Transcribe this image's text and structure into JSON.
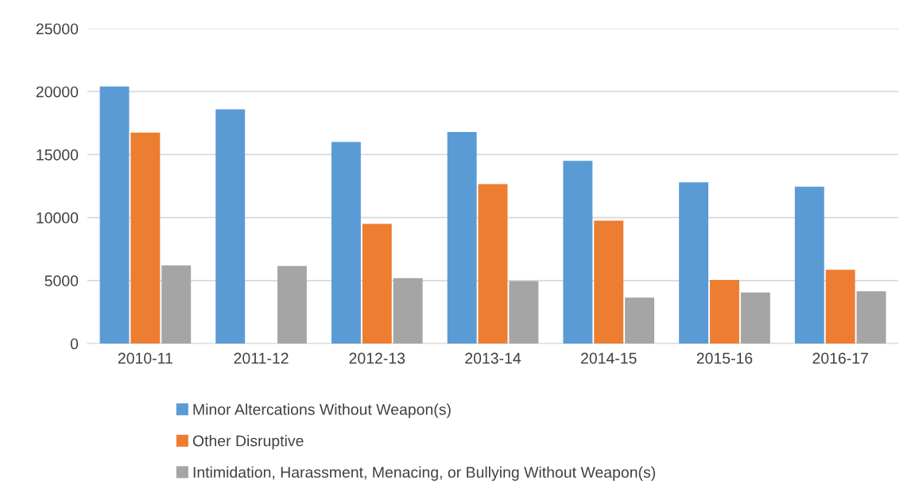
{
  "chart_data": {
    "type": "bar",
    "categories": [
      "2010-11",
      "2011-12",
      "2012-13",
      "2013-14",
      "2014-15",
      "2015-16",
      "2016-17"
    ],
    "series": [
      {
        "name": "Minor Altercations Without Weapon(s)",
        "color": "#5b9bd5",
        "values": [
          20400,
          18600,
          16000,
          16800,
          14500,
          12800,
          12450
        ]
      },
      {
        "name": "Other Disruptive",
        "color": "#ed7d31",
        "values": [
          16750,
          null,
          9500,
          12650,
          9750,
          5050,
          5850
        ]
      },
      {
        "name": "Intimidation, Harassment, Menacing, or Bullying Without Weapon(s)",
        "color": "#a5a5a5",
        "values": [
          6200,
          6150,
          5200,
          4950,
          3650,
          4050,
          4150
        ]
      }
    ],
    "ylim": [
      0,
      25000
    ],
    "yticks": [
      0,
      5000,
      10000,
      15000,
      20000,
      25000
    ],
    "grid": "y",
    "legend": "bottom"
  }
}
